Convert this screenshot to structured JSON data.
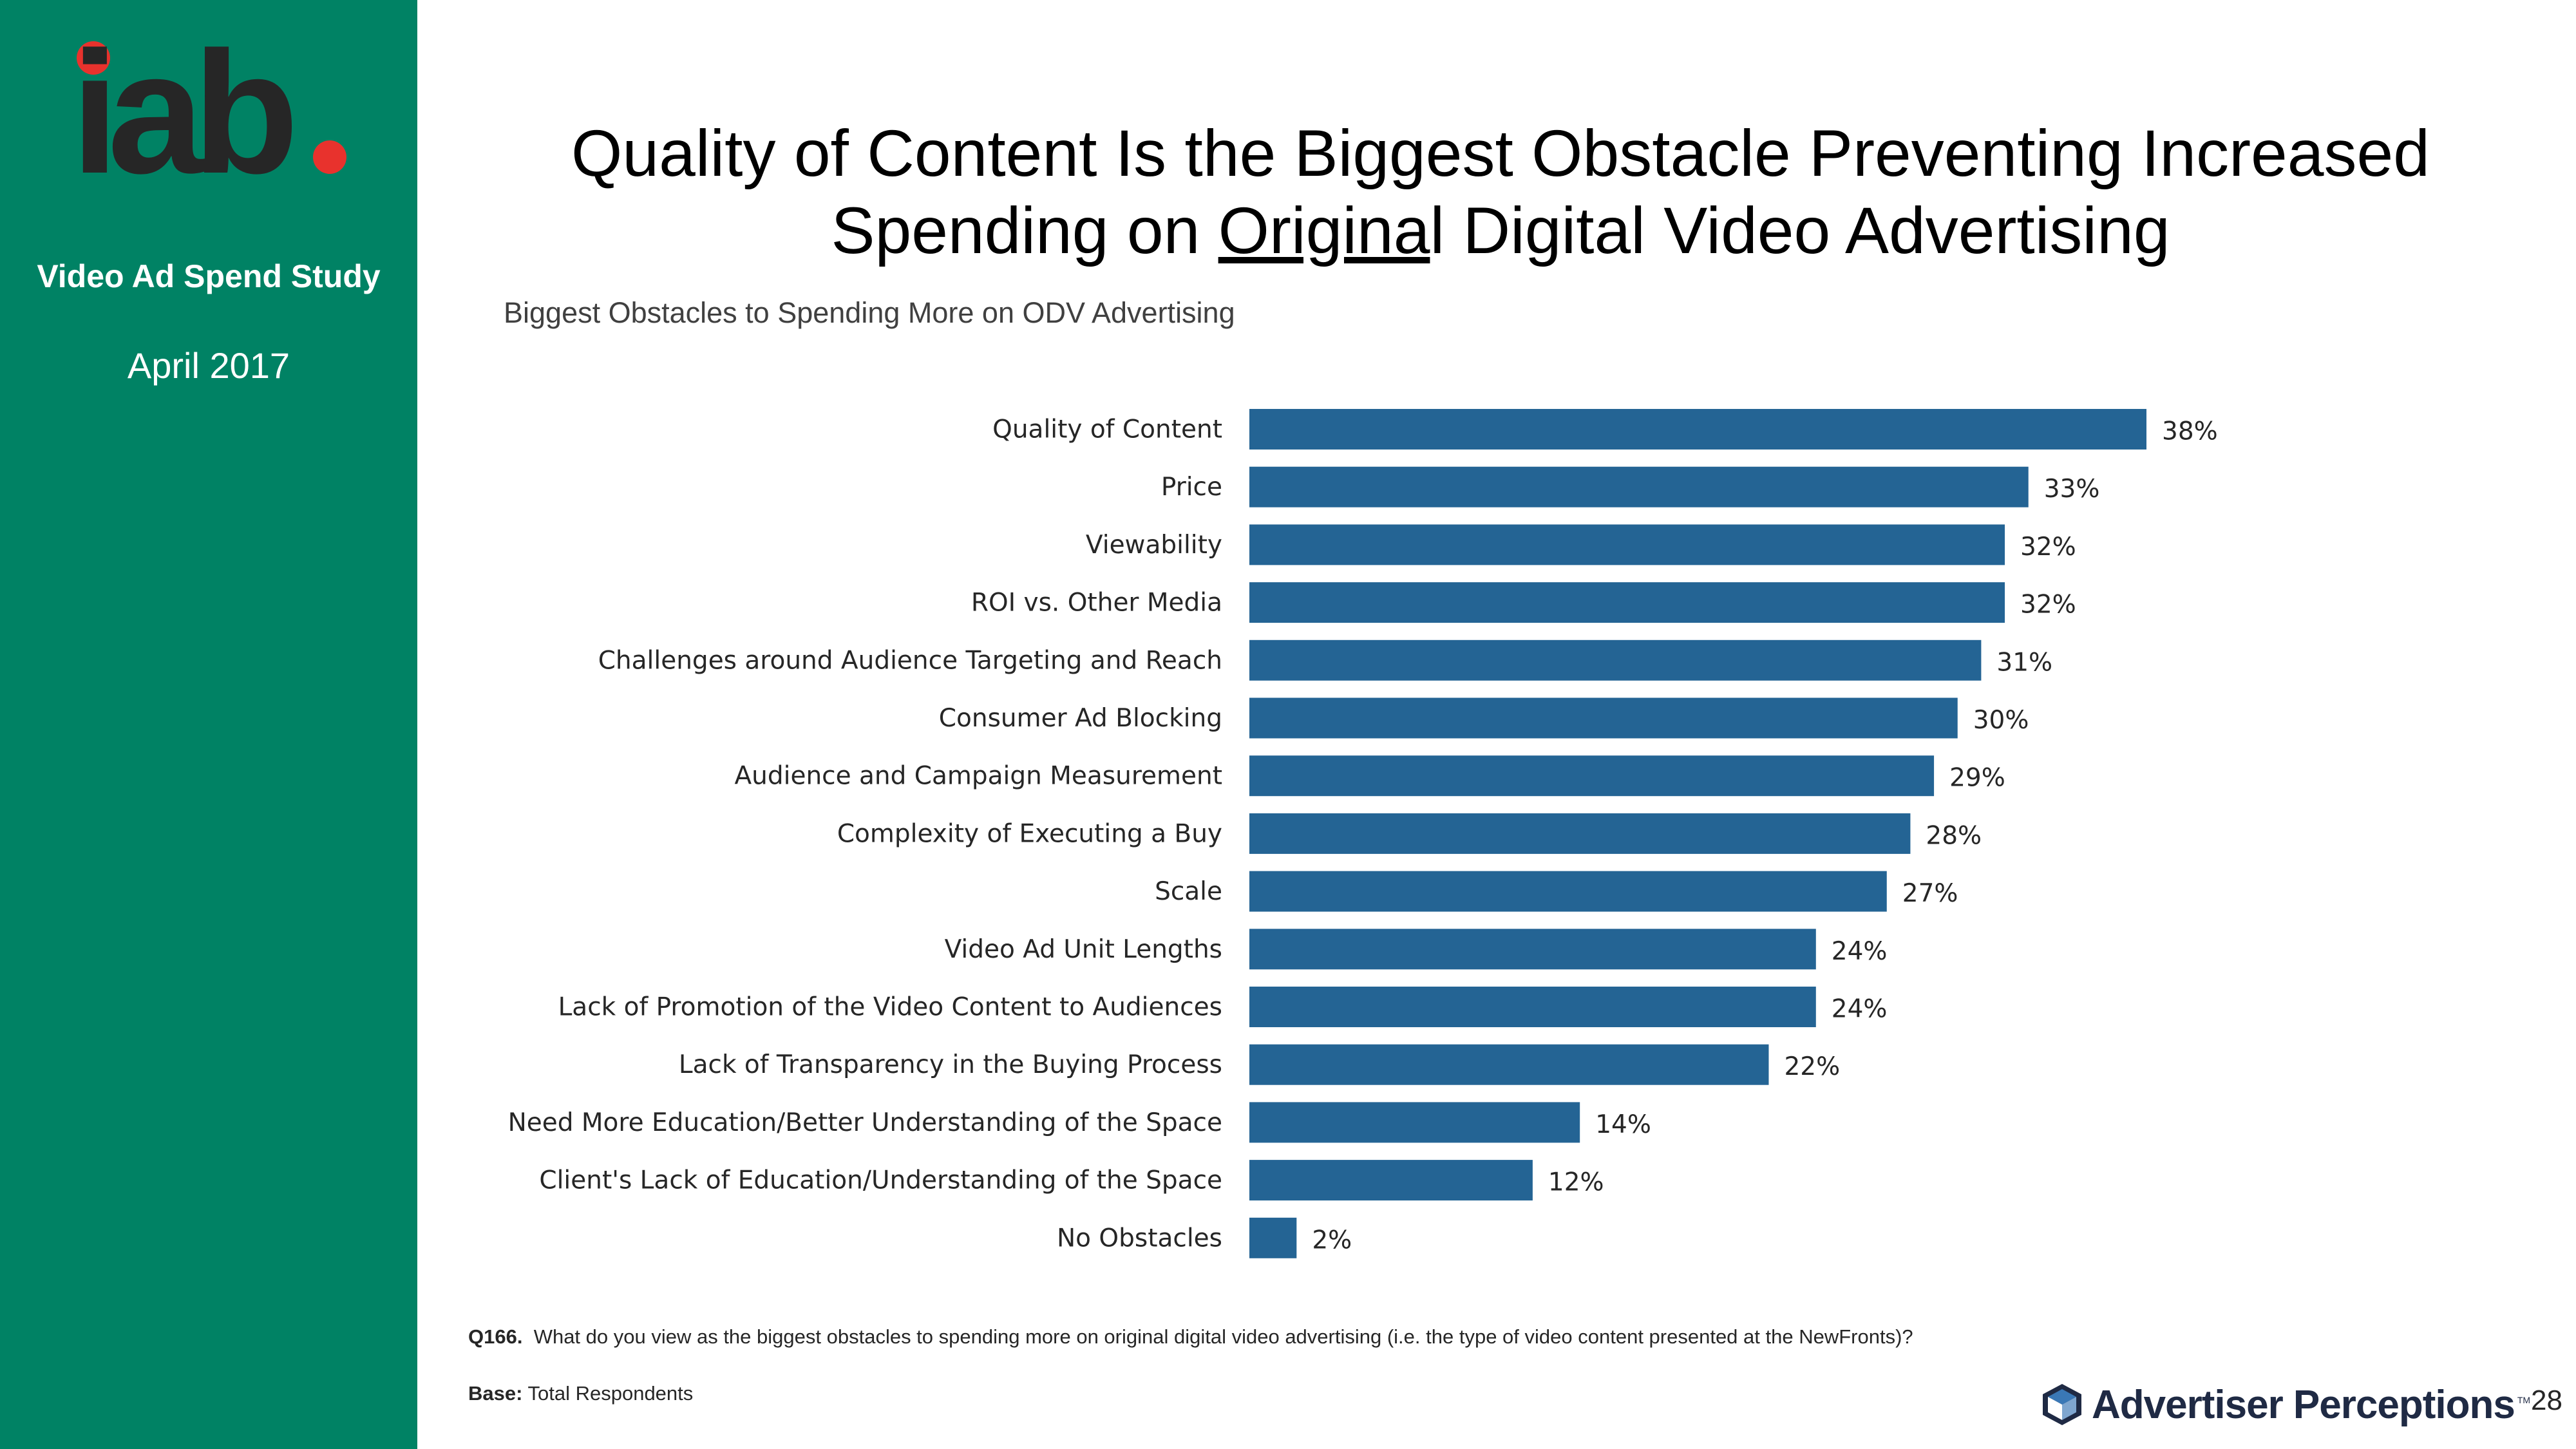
{
  "sidebar": {
    "logo_text": "iab",
    "study_title": "Video Ad Spend Study",
    "date": "April 2017"
  },
  "title": {
    "line1": "Quality of Content Is the Biggest Obstacle Preventing Increased",
    "line2_prefix": "Spending on ",
    "line2_emph": "Origina",
    "line2_suffix": "l Digital Video Advertising"
  },
  "chart_data": {
    "type": "bar",
    "orientation": "horizontal",
    "title": "Biggest Obstacles to Spending More on ODV Advertising",
    "categories": [
      "Quality of Content",
      "Price",
      "Viewability",
      "ROI vs. Other Media",
      "Challenges around Audience Targeting and Reach",
      "Consumer Ad Blocking",
      "Audience and Campaign Measurement",
      "Complexity of Executing a Buy",
      "Scale",
      "Video Ad Unit Lengths",
      "Lack of Promotion of the Video Content to Audiences",
      "Lack of Transparency in the Buying Process",
      "Need More Education/Better Understanding of the Space",
      "Client's Lack of Education/Understanding of the Space",
      "No Obstacles"
    ],
    "values": [
      38,
      33,
      32,
      32,
      31,
      30,
      29,
      28,
      27,
      24,
      24,
      22,
      14,
      12,
      2
    ],
    "value_suffix": "%",
    "bar_color": "#246494",
    "xlim": [
      0,
      38
    ]
  },
  "footnote": {
    "question_label": "Q166.",
    "question_text": "What do you view as the biggest obstacles to spending more on original digital video advertising (i.e. the type of video content presented at the NewFronts)?",
    "base_label": "Base:",
    "base_text": "Total Respondents"
  },
  "brand": {
    "name": "Advertiser Perceptions",
    "tm": "TM"
  },
  "page_number": "28"
}
